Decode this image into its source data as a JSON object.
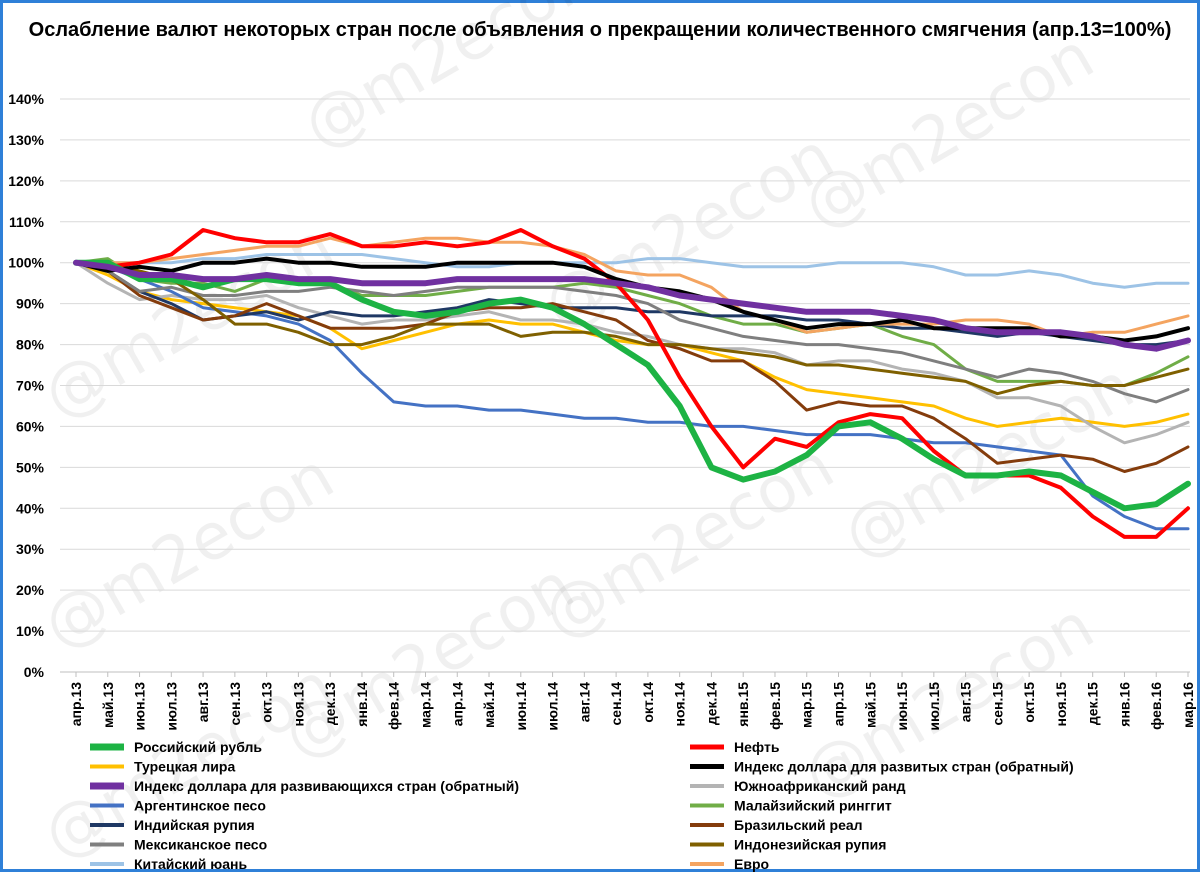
{
  "chart_data": {
    "type": "line",
    "title": "Ослабление валют некоторых стран после объявления о прекращении количественного смягчения  (апр.13=100%)",
    "watermark": "@m2econ",
    "ylim": [
      0,
      140
    ],
    "yticks": [
      "0%",
      "10%",
      "20%",
      "30%",
      "40%",
      "50%",
      "60%",
      "70%",
      "80%",
      "90%",
      "100%",
      "110%",
      "120%",
      "130%",
      "140%"
    ],
    "ytick_values": [
      0,
      10,
      20,
      30,
      40,
      50,
      60,
      70,
      80,
      90,
      100,
      110,
      120,
      130,
      140
    ],
    "categories": [
      "апр.13",
      "май.13",
      "июн.13",
      "июл.13",
      "авг.13",
      "сен.13",
      "окт.13",
      "ноя.13",
      "дек.13",
      "янв.14",
      "фев.14",
      "мар.14",
      "апр.14",
      "май.14",
      "июн.14",
      "июл.14",
      "авг.14",
      "сен.14",
      "окт.14",
      "ноя.14",
      "дек.14",
      "янв.15",
      "фев.15",
      "мар.15",
      "апр.15",
      "май.15",
      "июн.15",
      "июл.15",
      "авг.15",
      "сен.15",
      "окт.15",
      "ноя.15",
      "дек.15",
      "янв.16",
      "фев.16",
      "мар.16"
    ],
    "grid": true,
    "legend_position": "bottom",
    "series": [
      {
        "name": "Российский рубль",
        "color": "#1db344",
        "width": 6,
        "values": [
          100,
          100,
          96,
          96,
          94,
          96,
          96,
          95,
          95,
          91,
          88,
          87,
          88,
          90,
          91,
          89,
          85,
          80,
          75,
          65,
          50,
          47,
          49,
          53,
          60,
          61,
          57,
          52,
          48,
          48,
          49,
          48,
          44,
          40,
          41,
          46
        ]
      },
      {
        "name": "Нефть",
        "color": "#ff0000",
        "width": 4,
        "values": [
          100,
          99,
          100,
          102,
          108,
          106,
          105,
          105,
          107,
          104,
          104,
          105,
          104,
          105,
          108,
          104,
          101,
          95,
          86,
          72,
          60,
          50,
          57,
          55,
          61,
          63,
          62,
          54,
          48,
          48,
          48,
          45,
          38,
          33,
          33,
          40
        ]
      },
      {
        "name": "Турецкая лира",
        "color": "#ffc000",
        "width": 3,
        "values": [
          100,
          97,
          93,
          91,
          90,
          89,
          88,
          87,
          84,
          79,
          81,
          83,
          85,
          86,
          85,
          85,
          83,
          81,
          80,
          80,
          78,
          76,
          72,
          69,
          68,
          67,
          66,
          65,
          62,
          60,
          61,
          62,
          61,
          60,
          61,
          63
        ]
      },
      {
        "name": "Индекс доллара для развитых стран (обратный)",
        "color": "#000000",
        "width": 4,
        "values": [
          100,
          98,
          99,
          98,
          100,
          100,
          101,
          100,
          100,
          99,
          99,
          99,
          100,
          100,
          100,
          100,
          99,
          96,
          94,
          93,
          91,
          88,
          86,
          84,
          85,
          85,
          86,
          84,
          84,
          84,
          84,
          82,
          82,
          81,
          82,
          84
        ]
      },
      {
        "name": "Индекс доллара для развивающихся стран (обратный)",
        "color": "#7030a0",
        "width": 6,
        "values": [
          100,
          99,
          97,
          97,
          96,
          96,
          97,
          96,
          96,
          95,
          95,
          95,
          96,
          96,
          96,
          96,
          96,
          95,
          94,
          92,
          91,
          90,
          89,
          88,
          88,
          88,
          87,
          86,
          84,
          83,
          83,
          83,
          82,
          80,
          79,
          81
        ]
      },
      {
        "name": "Южноафриканский ранд",
        "color": "#b4b4b4",
        "width": 3,
        "values": [
          100,
          95,
          91,
          92,
          91,
          91,
          92,
          89,
          87,
          85,
          86,
          86,
          87,
          88,
          86,
          86,
          85,
          83,
          82,
          80,
          79,
          79,
          78,
          75,
          76,
          76,
          74,
          73,
          71,
          67,
          67,
          65,
          60,
          56,
          58,
          61
        ]
      },
      {
        "name": "Аргентинское песо",
        "color": "#4472c4",
        "width": 3,
        "values": [
          100,
          99,
          96,
          93,
          89,
          88,
          87,
          85,
          81,
          73,
          66,
          65,
          65,
          64,
          64,
          63,
          62,
          62,
          61,
          61,
          60,
          60,
          59,
          58,
          58,
          58,
          57,
          56,
          56,
          55,
          54,
          53,
          43,
          38,
          35,
          35
        ]
      },
      {
        "name": "Малайзийский ринггит",
        "color": "#70ad47",
        "width": 3,
        "values": [
          100,
          101,
          96,
          95,
          95,
          93,
          96,
          96,
          95,
          92,
          92,
          92,
          93,
          94,
          94,
          94,
          95,
          94,
          92,
          90,
          87,
          85,
          85,
          83,
          84,
          85,
          82,
          80,
          74,
          71,
          71,
          71,
          70,
          70,
          73,
          77
        ]
      },
      {
        "name": "Индийская рупия",
        "color": "#1f3864",
        "width": 3,
        "values": [
          100,
          98,
          93,
          90,
          86,
          87,
          88,
          86,
          88,
          87,
          87,
          88,
          89,
          91,
          90,
          89,
          89,
          89,
          88,
          88,
          87,
          87,
          87,
          86,
          86,
          85,
          84,
          84,
          83,
          82,
          83,
          82,
          81,
          80,
          80,
          81
        ]
      },
      {
        "name": "Бразильский реал",
        "color": "#843c0c",
        "width": 3,
        "values": [
          100,
          98,
          92,
          89,
          86,
          87,
          90,
          87,
          84,
          84,
          84,
          85,
          88,
          89,
          89,
          90,
          88,
          86,
          81,
          79,
          76,
          76,
          71,
          64,
          66,
          65,
          65,
          62,
          57,
          51,
          52,
          53,
          52,
          49,
          51,
          55
        ]
      },
      {
        "name": "Мексиканское песо",
        "color": "#7f7f7f",
        "width": 3,
        "values": [
          100,
          98,
          93,
          94,
          92,
          92,
          93,
          93,
          94,
          93,
          92,
          93,
          94,
          94,
          94,
          94,
          93,
          92,
          90,
          86,
          84,
          82,
          81,
          80,
          80,
          79,
          78,
          76,
          74,
          72,
          74,
          73,
          71,
          68,
          66,
          69
        ]
      },
      {
        "name": "Индонезийская рупия",
        "color": "#7f6000",
        "width": 3,
        "values": [
          100,
          100,
          98,
          96,
          91,
          85,
          85,
          83,
          80,
          80,
          82,
          85,
          85,
          85,
          82,
          83,
          83,
          82,
          80,
          80,
          79,
          78,
          77,
          75,
          75,
          74,
          73,
          72,
          71,
          68,
          70,
          71,
          70,
          70,
          72,
          74
        ]
      },
      {
        "name": "Китайский юань",
        "color": "#9dc3e6",
        "width": 3,
        "values": [
          100,
          100,
          100,
          100,
          101,
          101,
          102,
          102,
          102,
          102,
          101,
          100,
          99,
          99,
          100,
          100,
          100,
          100,
          101,
          101,
          100,
          99,
          99,
          99,
          100,
          100,
          100,
          99,
          97,
          97,
          98,
          97,
          95,
          94,
          95,
          95
        ]
      },
      {
        "name": "Евро",
        "color": "#f4a460",
        "width": 3,
        "values": [
          100,
          100,
          100,
          101,
          102,
          103,
          104,
          104,
          106,
          104,
          105,
          106,
          106,
          105,
          105,
          104,
          102,
          98,
          97,
          97,
          94,
          88,
          86,
          83,
          84,
          85,
          85,
          85,
          86,
          86,
          85,
          82,
          83,
          83,
          85,
          87
        ]
      }
    ]
  }
}
